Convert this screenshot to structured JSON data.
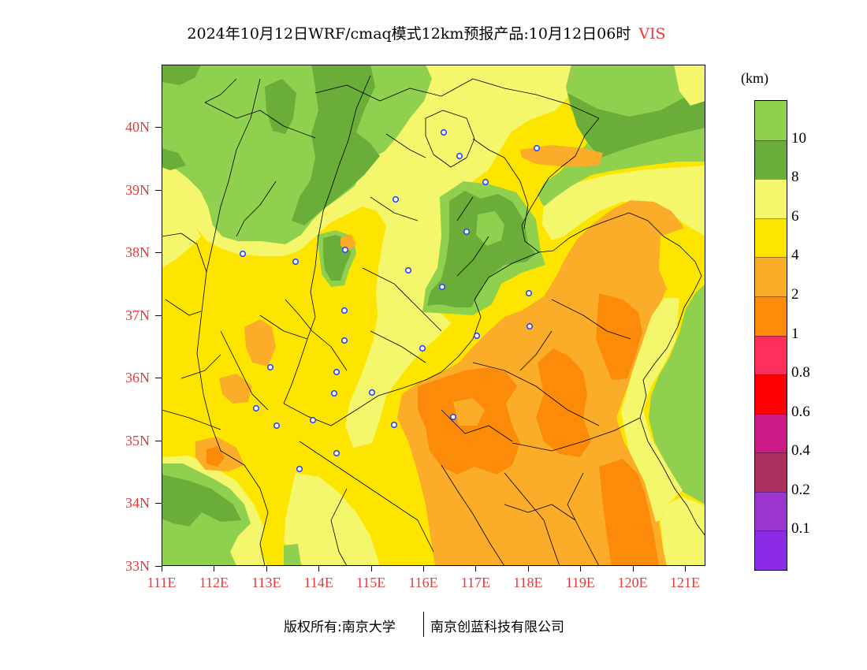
{
  "header": {
    "title": "2024年10月12日WRF/cmaq模式12km预报产品:10月12日06时",
    "variable": "VIS"
  },
  "map": {
    "lat_ticks": [
      "40N",
      "39N",
      "38N",
      "37N",
      "36N",
      "35N",
      "34N",
      "33N"
    ],
    "lon_ticks": [
      "111E",
      "112E",
      "113E",
      "114E",
      "115E",
      "116E",
      "117E",
      "118E",
      "119E",
      "120E",
      "121E"
    ]
  },
  "legend": {
    "unit": "(km)",
    "labels": [
      "10",
      "8",
      "6",
      "4",
      "2",
      "1",
      "0.8",
      "0.6",
      "0.4",
      "0.2",
      "0.1"
    ],
    "colors": [
      "#8fd04e",
      "#6aad38",
      "#f4f66c",
      "#fee500",
      "#fbad2a",
      "#fb8b08",
      "#fb2f5a",
      "#fe0000",
      "#cc1a87",
      "#aa2f5f",
      "#9a36ce",
      "#8a2be6"
    ]
  },
  "footer": {
    "left": "版权所有:南京大学",
    "right": "南京创蓝科技有限公司"
  },
  "colors": {
    "axis_labels": "#e8393b",
    "variable": "#e8393b",
    "city_marker": "#2a46f5",
    "boundary": "#000000"
  }
}
